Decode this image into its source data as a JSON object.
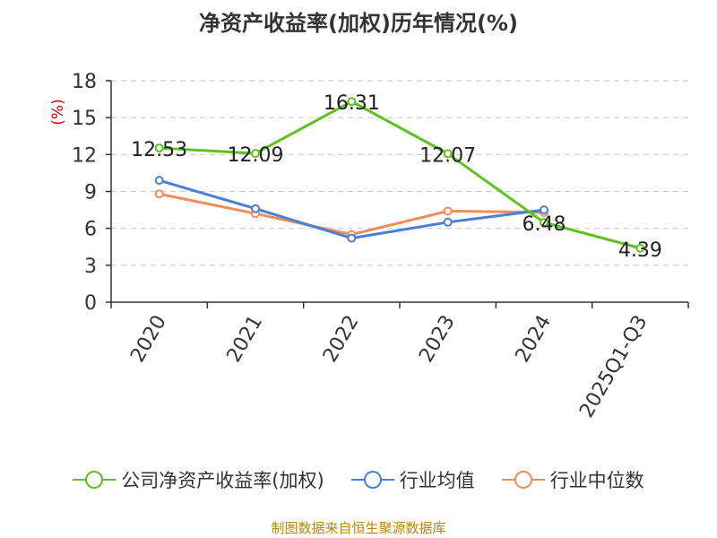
{
  "chart_data": {
    "type": "line",
    "title": "净资产收益率(加权)历年情况(%)",
    "ylabel": "(%)",
    "categories": [
      "2020",
      "2021",
      "2022",
      "2023",
      "2024",
      "2025Q1-Q3"
    ],
    "ylim": [
      0,
      18
    ],
    "yticks": [
      0,
      3,
      6,
      9,
      12,
      15,
      18
    ],
    "grid": true,
    "legend_position": "bottom",
    "series": [
      {
        "name": "公司净资产收益率(加权)",
        "color": "#5dc21e",
        "values": [
          12.53,
          12.09,
          16.31,
          12.07,
          6.48,
          4.39
        ],
        "labels": true
      },
      {
        "name": "行业均值",
        "color": "#4a7fd8",
        "values": [
          9.9,
          7.6,
          5.2,
          6.5,
          7.5,
          null
        ],
        "labels": false
      },
      {
        "name": "行业中位数",
        "color": "#f28c5a",
        "values": [
          8.8,
          7.2,
          5.5,
          7.4,
          7.3,
          null
        ],
        "labels": false
      }
    ]
  },
  "source": "制图数据来自恒生聚源数据库"
}
